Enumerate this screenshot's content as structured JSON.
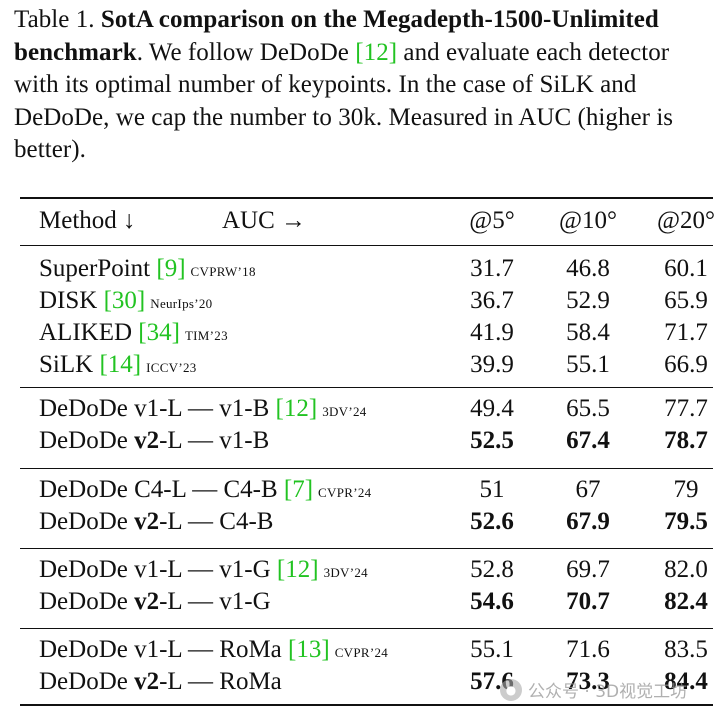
{
  "caption": {
    "label": "Table 1.",
    "bold_title": "SotA comparison on the Megadepth-1500-Unlimited benchmark",
    "text_before_cite": ". We follow DeDoDe ",
    "cite": "[12]",
    "text_after_cite": " and evaluate each detector with its optimal number of keypoints. In the case of SiLK and DeDoDe, we cap the number to 30k. Measured in AUC (higher is better)."
  },
  "table": {
    "header": {
      "method": "Method ↓",
      "auc": "AUC →",
      "c5": "@5°",
      "c10": "@10°",
      "c20": "@20°"
    },
    "groups": [
      {
        "rows": [
          {
            "prefix": "SuperPoint ",
            "bold_part": "",
            "suffix": "",
            "cite": "[9]",
            "venue": "CVPRW’18",
            "c5": "31.7",
            "c10": "46.8",
            "c20": "60.1",
            "bold": false
          },
          {
            "prefix": "DISK ",
            "bold_part": "",
            "suffix": "",
            "cite": "[30]",
            "venue": "NeurIps’20",
            "c5": "36.7",
            "c10": "52.9",
            "c20": "65.9",
            "bold": false
          },
          {
            "prefix": "ALIKED ",
            "bold_part": "",
            "suffix": "",
            "cite": "[34]",
            "venue": "TIM’23",
            "c5": "41.9",
            "c10": "58.4",
            "c20": "71.7",
            "bold": false
          },
          {
            "prefix": "SiLK ",
            "bold_part": "",
            "suffix": "",
            "cite": "[14]",
            "venue": "ICCV’23",
            "c5": "39.9",
            "c10": "55.1",
            "c20": "66.9",
            "bold": false
          }
        ]
      },
      {
        "rows": [
          {
            "prefix": "DeDoDe v1-L — v1-B ",
            "bold_part": "",
            "suffix": "",
            "cite": "[12]",
            "venue": "3DV’24",
            "c5": "49.4",
            "c10": "65.5",
            "c20": "77.7",
            "bold": false
          },
          {
            "prefix": "DeDoDe ",
            "bold_part": "v2",
            "suffix": "-L — v1-B",
            "cite": "",
            "venue": "",
            "c5": "52.5",
            "c10": "67.4",
            "c20": "78.7",
            "bold": true
          }
        ]
      },
      {
        "rows": [
          {
            "prefix": "DeDoDe C4-L — C4-B ",
            "bold_part": "",
            "suffix": "",
            "cite": "[7]",
            "venue": "CVPR’24",
            "c5": "51",
            "c10": "67",
            "c20": "79",
            "bold": false
          },
          {
            "prefix": "DeDoDe ",
            "bold_part": "v2",
            "suffix": "-L — C4-B",
            "cite": "",
            "venue": "",
            "c5": "52.6",
            "c10": "67.9",
            "c20": "79.5",
            "bold": true
          }
        ]
      },
      {
        "rows": [
          {
            "prefix": "DeDoDe v1-L — v1-G ",
            "bold_part": "",
            "suffix": "",
            "cite": "[12]",
            "venue": "3DV’24",
            "c5": "52.8",
            "c10": "69.7",
            "c20": "82.0",
            "bold": false
          },
          {
            "prefix": "DeDoDe ",
            "bold_part": "v2",
            "suffix": "-L — v1-G",
            "cite": "",
            "venue": "",
            "c5": "54.6",
            "c10": "70.7",
            "c20": "82.4",
            "bold": true
          }
        ]
      },
      {
        "rows": [
          {
            "prefix": "DeDoDe v1-L — RoMa ",
            "bold_part": "",
            "suffix": "",
            "cite": "[13]",
            "venue": "CVPR’24",
            "c5": "55.1",
            "c10": "71.6",
            "c20": "83.5",
            "bold": false
          },
          {
            "prefix": "DeDoDe ",
            "bold_part": "v2",
            "suffix": "-L — RoMa",
            "cite": "",
            "venue": "",
            "c5": "57.6",
            "c10": "73.3",
            "c20": "84.4",
            "bold": true
          }
        ]
      }
    ]
  },
  "watermark": {
    "icon": "wechat-icon",
    "text": "公众号 · 3D视觉工坊"
  },
  "colors": {
    "cite": "#22c322",
    "text": "#111111"
  }
}
